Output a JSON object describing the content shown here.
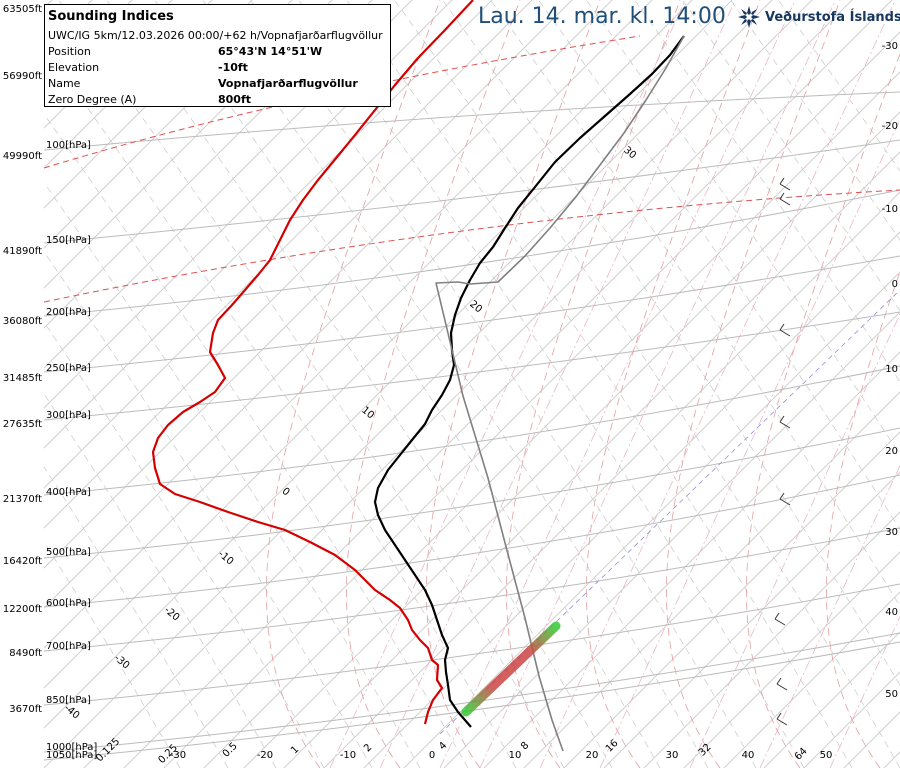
{
  "header": {
    "title": "Lau. 14. mar. kl. 14:00",
    "brand": "Veðurstofa Íslands",
    "logo_icon": "snowflake-logo-icon",
    "brand_color": "#17375e",
    "title_color": "#1f4e79"
  },
  "info_box": {
    "title": "Sounding Indices",
    "source": "UWC/IG 5km/12.03.2026 00:00/+62 h/Vopnafjarðarflugvöllur",
    "rows": [
      {
        "label": "Position",
        "value": "65°43'N 14°51'W"
      },
      {
        "label": "Elevation",
        "value": "-10ft"
      },
      {
        "label": "Name",
        "value": "Vopnafjarðarflugvöllur"
      },
      {
        "label": "Zero Degree (A)",
        "value": "800ft"
      }
    ]
  },
  "chart_data": {
    "type": "line",
    "left_altitude_ticks": [
      "63505ft",
      "56990ft",
      "49990ft",
      "41890ft",
      "36080ft",
      "31485ft",
      "27635ft",
      "21370ft",
      "16420ft",
      "12200ft",
      "8490ft",
      "3670ft"
    ],
    "pressure_ticks": [
      "100[hPa]",
      "150[hPa]",
      "200[hPa]",
      "250[hPa]",
      "300[hPa]",
      "400[hPa]",
      "500[hPa]",
      "600[hPa]",
      "700[hPa]",
      "850[hPa]",
      "1000[hPa]",
      "1050[hPa]"
    ],
    "right_temp_ticks": [
      "-30",
      "-20",
      "-10",
      "0",
      "10",
      "20",
      "30",
      "40",
      "50"
    ],
    "bottom_temp_ticks": [
      "-30",
      "-20",
      "-10",
      "0",
      "10",
      "20",
      "30",
      "40",
      "50"
    ],
    "bottom_mixing_ticks": [
      "0.125",
      "0.25",
      "0.5",
      "1",
      "2",
      "4",
      "8",
      "16",
      "32",
      "64"
    ],
    "isotherm_labels": [
      "30",
      "20",
      "10",
      "0",
      "-10",
      "-20",
      "-30",
      "-40"
    ],
    "series": [
      {
        "color": "#d40000",
        "points": [
          [
            473,
            0
          ],
          [
            445,
            30
          ],
          [
            418,
            58
          ],
          [
            395,
            85
          ],
          [
            375,
            110
          ],
          [
            355,
            135
          ],
          [
            337,
            157
          ],
          [
            318,
            180
          ],
          [
            303,
            200
          ],
          [
            290,
            220
          ],
          [
            280,
            240
          ],
          [
            270,
            260
          ],
          [
            258,
            275
          ],
          [
            245,
            290
          ],
          [
            232,
            305
          ],
          [
            218,
            320
          ],
          [
            213,
            333
          ],
          [
            210,
            352
          ],
          [
            218,
            365
          ],
          [
            225,
            378
          ],
          [
            215,
            392
          ],
          [
            200,
            402
          ],
          [
            183,
            412
          ],
          [
            168,
            425
          ],
          [
            158,
            438
          ],
          [
            153,
            452
          ],
          [
            155,
            468
          ],
          [
            160,
            484
          ],
          [
            175,
            494
          ],
          [
            200,
            502
          ],
          [
            228,
            512
          ],
          [
            258,
            522
          ],
          [
            285,
            530
          ],
          [
            310,
            542
          ],
          [
            335,
            555
          ],
          [
            355,
            570
          ],
          [
            365,
            580
          ],
          [
            375,
            590
          ],
          [
            390,
            600
          ],
          [
            400,
            608
          ],
          [
            408,
            620
          ],
          [
            412,
            630
          ],
          [
            420,
            640
          ],
          [
            428,
            648
          ],
          [
            432,
            660
          ],
          [
            438,
            665
          ],
          [
            437,
            680
          ],
          [
            442,
            688
          ],
          [
            433,
            700
          ],
          [
            428,
            712
          ],
          [
            425,
            724
          ]
        ]
      },
      {
        "color": "#000000",
        "points": [
          [
            684,
            36
          ],
          [
            670,
            55
          ],
          [
            652,
            74
          ],
          [
            630,
            94
          ],
          [
            605,
            116
          ],
          [
            580,
            138
          ],
          [
            555,
            162
          ],
          [
            535,
            187
          ],
          [
            518,
            208
          ],
          [
            505,
            228
          ],
          [
            493,
            247
          ],
          [
            480,
            263
          ],
          [
            470,
            280
          ],
          [
            461,
            298
          ],
          [
            455,
            315
          ],
          [
            451,
            333
          ],
          [
            452,
            350
          ],
          [
            454,
            365
          ],
          [
            450,
            380
          ],
          [
            442,
            395
          ],
          [
            432,
            410
          ],
          [
            425,
            424
          ],
          [
            412,
            440
          ],
          [
            400,
            455
          ],
          [
            388,
            470
          ],
          [
            378,
            488
          ],
          [
            375,
            502
          ],
          [
            378,
            515
          ],
          [
            385,
            530
          ],
          [
            395,
            545
          ],
          [
            405,
            560
          ],
          [
            415,
            575
          ],
          [
            425,
            590
          ],
          [
            432,
            605
          ],
          [
            437,
            620
          ],
          [
            442,
            635
          ],
          [
            448,
            648
          ],
          [
            445,
            660
          ],
          [
            446,
            672
          ],
          [
            448,
            685
          ],
          [
            450,
            700
          ],
          [
            458,
            712
          ],
          [
            471,
            727
          ]
        ]
      },
      {
        "color": "#808080",
        "points": [
          [
            684,
            36
          ],
          [
            666,
            68
          ],
          [
            646,
            100
          ],
          [
            624,
            133
          ],
          [
            600,
            165
          ],
          [
            575,
            198
          ],
          [
            550,
            228
          ],
          [
            525,
            256
          ],
          [
            498,
            282
          ],
          [
            470,
            284
          ],
          [
            458,
            282
          ],
          [
            436,
            283
          ],
          [
            463,
            396
          ],
          [
            488,
            478
          ],
          [
            509,
            558
          ],
          [
            525,
            618
          ],
          [
            539,
            676
          ],
          [
            552,
            720
          ],
          [
            563,
            751
          ]
        ]
      }
    ]
  }
}
